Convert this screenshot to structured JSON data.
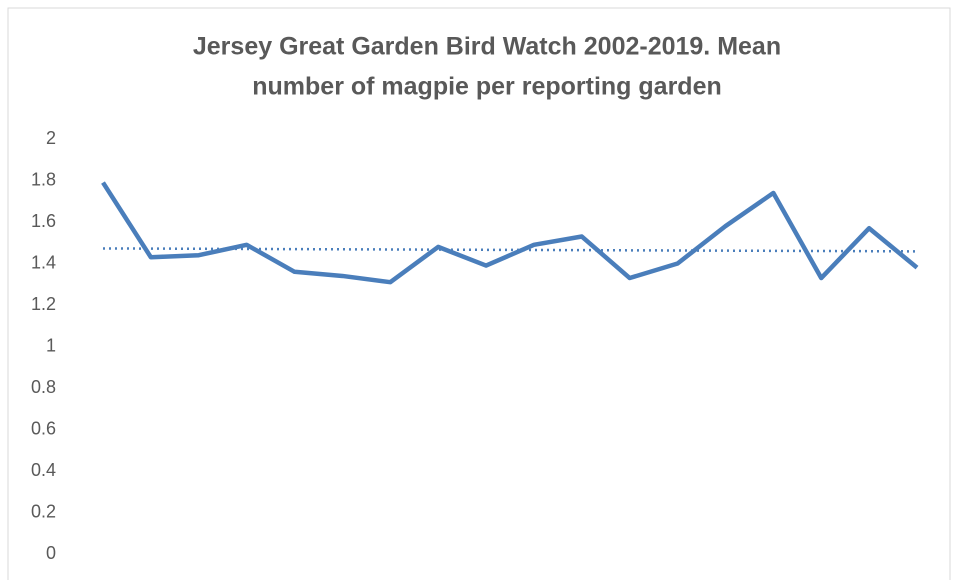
{
  "chart_data": {
    "type": "line",
    "title": [
      "Jersey Great Garden Bird Watch 2002-2019. Mean",
      "number of magpie per reporting garden"
    ],
    "values": [
      1.79,
      1.43,
      1.44,
      1.49,
      1.36,
      1.34,
      1.31,
      1.48,
      1.39,
      1.49,
      1.53,
      1.33,
      1.4,
      1.58,
      1.74,
      1.33,
      1.57,
      1.38
    ],
    "color": "#4a7ebb",
    "trendline": "linear",
    "ylim": [
      0,
      2
    ],
    "yticks": [
      0,
      0.2,
      0.4,
      0.6,
      0.8,
      1,
      1.2,
      1.4,
      1.6,
      1.8,
      2
    ],
    "grid": false
  }
}
